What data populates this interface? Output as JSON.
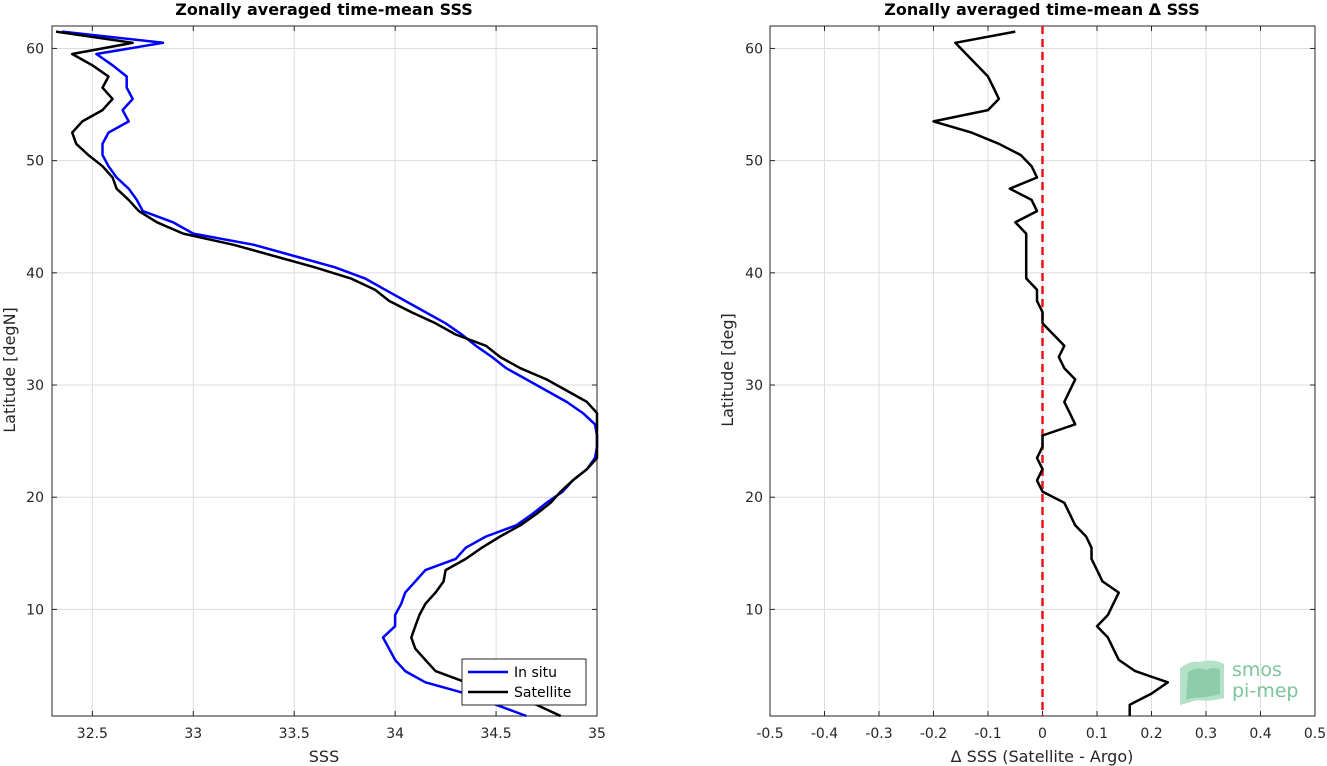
{
  "chart_data": [
    {
      "type": "line",
      "title": "Zonally averaged time-mean SSS",
      "xlabel": "SSS",
      "ylabel": "Latitude [degN]",
      "xlim": [
        32.3,
        35.0
      ],
      "ylim": [
        0.5,
        62
      ],
      "xticks": [
        32.5,
        33,
        33.5,
        34,
        34.5,
        35
      ],
      "xtick_labels": [
        "32.5",
        "33",
        "33.5",
        "34",
        "34.5",
        "35"
      ],
      "yticks": [
        10,
        20,
        30,
        40,
        50,
        60
      ],
      "ytick_labels": [
        "10",
        "20",
        "30",
        "40",
        "50",
        "60"
      ],
      "grid": true,
      "legend_position": "bottom-right",
      "series": [
        {
          "name": "In situ",
          "color": "#0000ff",
          "points": [
            [
              34.65,
              0.5
            ],
            [
              34.5,
              1.5
            ],
            [
              34.35,
              2.5
            ],
            [
              34.15,
              3.5
            ],
            [
              34.05,
              4.5
            ],
            [
              34.0,
              5.5
            ],
            [
              33.97,
              6.5
            ],
            [
              33.94,
              7.5
            ],
            [
              34.0,
              8.5
            ],
            [
              34.0,
              9.5
            ],
            [
              34.03,
              10.5
            ],
            [
              34.05,
              11.5
            ],
            [
              34.1,
              12.5
            ],
            [
              34.15,
              13.5
            ],
            [
              34.3,
              14.5
            ],
            [
              34.35,
              15.5
            ],
            [
              34.45,
              16.5
            ],
            [
              34.6,
              17.5
            ],
            [
              34.68,
              18.5
            ],
            [
              34.75,
              19.5
            ],
            [
              34.83,
              20.5
            ],
            [
              34.88,
              21.5
            ],
            [
              34.95,
              22.5
            ],
            [
              34.99,
              23.5
            ],
            [
              35.0,
              24.5
            ],
            [
              35.0,
              25.5
            ],
            [
              34.99,
              26.5
            ],
            [
              34.93,
              27.5
            ],
            [
              34.85,
              28.5
            ],
            [
              34.75,
              29.5
            ],
            [
              34.65,
              30.5
            ],
            [
              34.55,
              31.5
            ],
            [
              34.48,
              32.5
            ],
            [
              34.4,
              33.5
            ],
            [
              34.33,
              34.5
            ],
            [
              34.25,
              35.5
            ],
            [
              34.15,
              36.5
            ],
            [
              34.05,
              37.5
            ],
            [
              33.95,
              38.5
            ],
            [
              33.85,
              39.5
            ],
            [
              33.7,
              40.5
            ],
            [
              33.5,
              41.5
            ],
            [
              33.3,
              42.5
            ],
            [
              33.0,
              43.5
            ],
            [
              32.9,
              44.5
            ],
            [
              32.75,
              45.5
            ],
            [
              32.72,
              46.5
            ],
            [
              32.68,
              47.5
            ],
            [
              32.62,
              48.5
            ],
            [
              32.58,
              49.5
            ],
            [
              32.55,
              50.5
            ],
            [
              32.55,
              51.5
            ],
            [
              32.58,
              52.5
            ],
            [
              32.68,
              53.5
            ],
            [
              32.65,
              54.5
            ],
            [
              32.7,
              55.5
            ],
            [
              32.67,
              56.5
            ],
            [
              32.67,
              57.5
            ],
            [
              32.6,
              58.5
            ],
            [
              32.52,
              59.5
            ],
            [
              32.85,
              60.5
            ],
            [
              32.35,
              61.5
            ]
          ]
        },
        {
          "name": "Satellite",
          "color": "#000000",
          "points": [
            [
              34.82,
              0.5
            ],
            [
              34.7,
              1.5
            ],
            [
              34.52,
              2.5
            ],
            [
              34.35,
              3.5
            ],
            [
              34.2,
              4.5
            ],
            [
              34.15,
              5.5
            ],
            [
              34.1,
              6.5
            ],
            [
              34.08,
              7.5
            ],
            [
              34.1,
              8.5
            ],
            [
              34.12,
              9.5
            ],
            [
              34.15,
              10.5
            ],
            [
              34.2,
              11.5
            ],
            [
              34.24,
              12.5
            ],
            [
              34.25,
              13.5
            ],
            [
              34.35,
              14.5
            ],
            [
              34.43,
              15.5
            ],
            [
              34.52,
              16.5
            ],
            [
              34.62,
              17.5
            ],
            [
              34.7,
              18.5
            ],
            [
              34.77,
              19.5
            ],
            [
              34.82,
              20.5
            ],
            [
              34.88,
              21.5
            ],
            [
              34.95,
              22.5
            ],
            [
              35.0,
              23.5
            ],
            [
              35.0,
              24.5
            ],
            [
              35.0,
              25.5
            ],
            [
              35.0,
              26.5
            ],
            [
              35.0,
              27.5
            ],
            [
              34.95,
              28.5
            ],
            [
              34.85,
              29.5
            ],
            [
              34.75,
              30.5
            ],
            [
              34.62,
              31.5
            ],
            [
              34.52,
              32.5
            ],
            [
              34.45,
              33.5
            ],
            [
              34.3,
              34.5
            ],
            [
              34.2,
              35.5
            ],
            [
              34.08,
              36.5
            ],
            [
              33.97,
              37.5
            ],
            [
              33.9,
              38.5
            ],
            [
              33.78,
              39.5
            ],
            [
              33.6,
              40.5
            ],
            [
              33.4,
              41.5
            ],
            [
              33.2,
              42.5
            ],
            [
              32.95,
              43.5
            ],
            [
              32.82,
              44.5
            ],
            [
              32.73,
              45.5
            ],
            [
              32.68,
              46.5
            ],
            [
              32.62,
              47.5
            ],
            [
              32.6,
              48.5
            ],
            [
              32.55,
              49.5
            ],
            [
              32.48,
              50.5
            ],
            [
              32.42,
              51.5
            ],
            [
              32.4,
              52.5
            ],
            [
              32.45,
              53.5
            ],
            [
              32.55,
              54.5
            ],
            [
              32.6,
              55.5
            ],
            [
              32.55,
              56.5
            ],
            [
              32.58,
              57.5
            ],
            [
              32.5,
              58.5
            ],
            [
              32.4,
              59.5
            ],
            [
              32.7,
              60.5
            ],
            [
              32.32,
              61.5
            ]
          ]
        }
      ]
    },
    {
      "type": "line",
      "title": "Zonally averaged time-mean Δ SSS",
      "xlabel": "Δ SSS (Satellite - Argo)",
      "ylabel": "Latitude [deg]",
      "xlim": [
        -0.5,
        0.5
      ],
      "ylim": [
        0.5,
        62
      ],
      "xticks": [
        -0.5,
        -0.4,
        -0.3,
        -0.2,
        -0.1,
        0,
        0.1,
        0.2,
        0.3,
        0.4,
        0.5
      ],
      "xtick_labels": [
        "-0.5",
        "-0.4",
        "-0.3",
        "-0.2",
        "-0.1",
        "0",
        "0.1",
        "0.2",
        "0.3",
        "0.4",
        "0.5"
      ],
      "yticks": [
        10,
        20,
        30,
        40,
        50,
        60
      ],
      "ytick_labels": [
        "10",
        "20",
        "30",
        "40",
        "50",
        "60"
      ],
      "grid": true,
      "reference_line": {
        "x": 0,
        "color": "#e8141c",
        "style": "dashed"
      },
      "series": [
        {
          "color": "#000000",
          "points": [
            [
              0.16,
              0.5
            ],
            [
              0.16,
              1.5
            ],
            [
              0.2,
              2.5
            ],
            [
              0.23,
              3.5
            ],
            [
              0.17,
              4.5
            ],
            [
              0.14,
              5.5
            ],
            [
              0.13,
              6.5
            ],
            [
              0.12,
              7.5
            ],
            [
              0.1,
              8.5
            ],
            [
              0.12,
              9.5
            ],
            [
              0.13,
              10.5
            ],
            [
              0.14,
              11.5
            ],
            [
              0.11,
              12.5
            ],
            [
              0.1,
              13.5
            ],
            [
              0.09,
              14.5
            ],
            [
              0.09,
              15.5
            ],
            [
              0.08,
              16.5
            ],
            [
              0.06,
              17.5
            ],
            [
              0.05,
              18.5
            ],
            [
              0.04,
              19.5
            ],
            [
              0.0,
              20.5
            ],
            [
              -0.01,
              21.5
            ],
            [
              0.0,
              22.5
            ],
            [
              -0.01,
              23.5
            ],
            [
              0.0,
              24.5
            ],
            [
              0.0,
              25.5
            ],
            [
              0.06,
              26.5
            ],
            [
              0.05,
              27.5
            ],
            [
              0.04,
              28.5
            ],
            [
              0.05,
              29.5
            ],
            [
              0.06,
              30.5
            ],
            [
              0.04,
              31.5
            ],
            [
              0.03,
              32.5
            ],
            [
              0.04,
              33.5
            ],
            [
              0.02,
              34.5
            ],
            [
              0.0,
              35.5
            ],
            [
              0.0,
              36.5
            ],
            [
              -0.01,
              37.5
            ],
            [
              -0.01,
              38.5
            ],
            [
              -0.03,
              39.5
            ],
            [
              -0.03,
              40.5
            ],
            [
              -0.03,
              41.5
            ],
            [
              -0.03,
              42.5
            ],
            [
              -0.03,
              43.5
            ],
            [
              -0.05,
              44.5
            ],
            [
              -0.01,
              45.5
            ],
            [
              -0.02,
              46.5
            ],
            [
              -0.06,
              47.5
            ],
            [
              -0.01,
              48.5
            ],
            [
              -0.02,
              49.5
            ],
            [
              -0.04,
              50.5
            ],
            [
              -0.08,
              51.5
            ],
            [
              -0.13,
              52.5
            ],
            [
              -0.2,
              53.5
            ],
            [
              -0.1,
              54.5
            ],
            [
              -0.08,
              55.5
            ],
            [
              -0.09,
              56.5
            ],
            [
              -0.1,
              57.5
            ],
            [
              -0.12,
              58.5
            ],
            [
              -0.14,
              59.5
            ],
            [
              -0.16,
              60.5
            ],
            [
              -0.05,
              61.5
            ]
          ]
        }
      ]
    }
  ],
  "logo": {
    "line1": "smos",
    "line2": "pi-mep"
  }
}
